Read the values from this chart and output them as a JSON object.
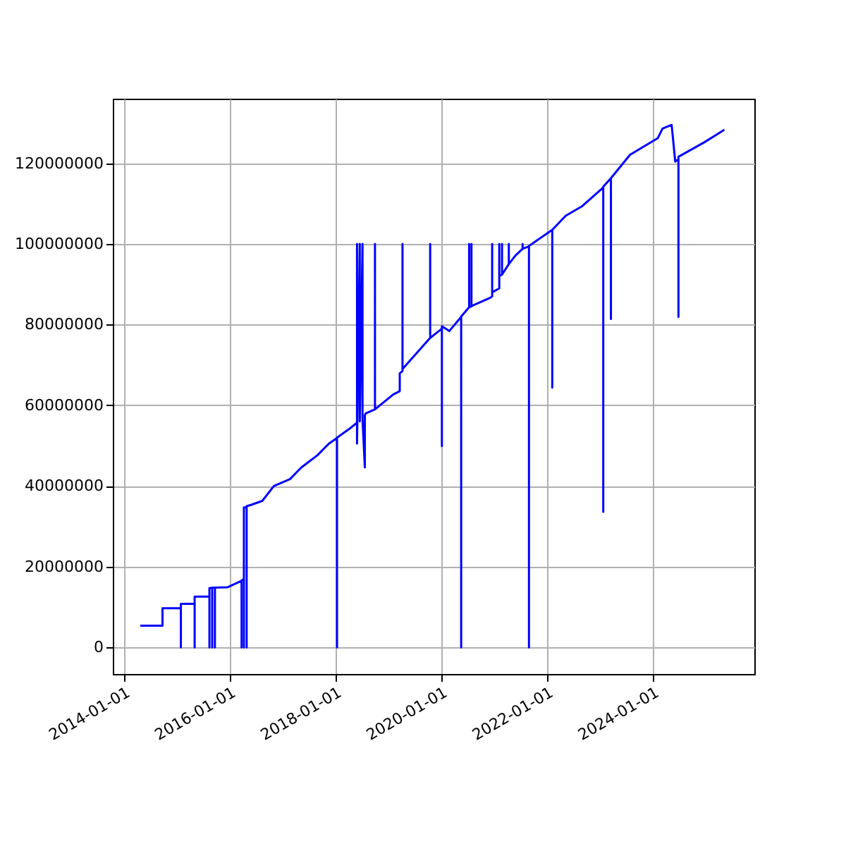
{
  "chart_data": {
    "type": "line",
    "grid": true,
    "xlim": [
      "2013-10-16",
      "2025-12-01"
    ],
    "xticks": [
      "2014-01-01",
      "2016-01-01",
      "2018-01-01",
      "2020-01-01",
      "2022-01-01",
      "2024-01-01"
    ],
    "ylim": [
      -6600000,
      136000000
    ],
    "yticks": [
      0,
      20000000,
      40000000,
      60000000,
      80000000,
      100000000,
      120000000
    ],
    "x": [
      "2014-04-24",
      "2014-09-24",
      "2014-09-24",
      "2015-01-29",
      "2015-01-29",
      "2015-01-29",
      "2015-05-04",
      "2015-05-04",
      "2015-05-04",
      "2015-08-14",
      "2015-08-14",
      "2015-08-14",
      "2015-09-02",
      "2015-09-02",
      "2015-09-02",
      "2015-09-21",
      "2015-09-21",
      "2015-09-21",
      "2015-12-18",
      "2016-03-23",
      "2016-03-23",
      "2016-03-23",
      "2016-04-08",
      "2016-04-08",
      "2016-04-08",
      "2016-04-08",
      "2016-04-08",
      "2016-04-27",
      "2016-04-27",
      "2016-04-27",
      "2016-05-26",
      "2016-08-13",
      "2016-11-01",
      "2017-02-20",
      "2017-05-10",
      "2017-08-28",
      "2017-11-16",
      "2018-01-11",
      "2018-01-11",
      "2018-01-11",
      "2018-04-08",
      "2018-05-29",
      "2018-05-29",
      "2018-05-29",
      "2018-06-17",
      "2018-06-17",
      "2018-07-06",
      "2018-07-06",
      "2018-07-22",
      "2018-07-22",
      "2018-07-28",
      "2018-09-30",
      "2018-09-30",
      "2018-09-30",
      "2019-02-04",
      "2019-03-20",
      "2019-03-20",
      "2019-04-08",
      "2019-04-08",
      "2019-04-08",
      "2019-10-16",
      "2019-10-16",
      "2019-10-16",
      "2020-01-05",
      "2020-01-05",
      "2020-01-05",
      "2020-02-25",
      "2020-05-17",
      "2020-05-17",
      "2020-05-17",
      "2020-07-11",
      "2020-07-11",
      "2020-07-11",
      "2020-07-27",
      "2020-07-27",
      "2020-07-27",
      "2020-12-01",
      "2020-12-17",
      "2020-12-17",
      "2020-12-17",
      "2021-02-04",
      "2021-02-04",
      "2021-02-04",
      "2021-02-23",
      "2021-02-23",
      "2021-02-23",
      "2021-04-11",
      "2021-04-11",
      "2021-04-11",
      "2021-05-26",
      "2021-07-15",
      "2021-07-15",
      "2021-07-15",
      "2021-08-28",
      "2021-08-28",
      "2021-08-28",
      "2022-02-05",
      "2022-02-05",
      "2022-02-05",
      "2022-05-09",
      "2022-08-28",
      "2023-01-23",
      "2023-01-23",
      "2023-01-23",
      "2023-03-17",
      "2023-03-17",
      "2023-03-17",
      "2023-07-27",
      "2024-02-03",
      "2024-03-07",
      "2024-05-09",
      "2024-06-03",
      "2024-06-25",
      "2024-06-25",
      "2024-06-25",
      "2024-12-16",
      "2025-05-08"
    ],
    "series": [
      {
        "color": "#0000ff",
        "values": [
          5350000,
          5350000,
          9700000,
          9700000,
          0,
          10800000,
          10800000,
          0,
          12600000,
          12600000,
          0,
          14700000,
          14700000,
          0,
          14800000,
          14800000,
          0,
          14800000,
          14900000,
          16500000,
          0,
          16600000,
          16900000,
          0,
          34700000,
          0,
          34700000,
          34700000,
          0,
          35000000,
          35300000,
          36300000,
          40000000,
          41700000,
          44600000,
          47600000,
          50500000,
          51900000,
          0,
          52000000,
          54200000,
          55700000,
          100000000,
          50500000,
          100000000,
          56000000,
          100000000,
          56500000,
          44600000,
          57500000,
          58000000,
          59000000,
          100000000,
          59000000,
          62700000,
          63500000,
          67900000,
          68500000,
          100000000,
          69000000,
          76700000,
          100000000,
          76700000,
          79000000,
          49900000,
          79600000,
          78400000,
          81900000,
          0,
          82000000,
          84300000,
          100000000,
          84300000,
          84500000,
          100000000,
          84600000,
          86600000,
          87000000,
          100000000,
          88000000,
          89000000,
          100000000,
          92000000,
          92400000,
          100000000,
          92400000,
          95000000,
          100000000,
          95000000,
          97100000,
          98800000,
          100000000,
          98800000,
          99400000,
          0,
          99500000,
          103500000,
          64400000,
          103500000,
          107000000,
          109300000,
          114000000,
          33600000,
          114200000,
          116300000,
          81400000,
          116300000,
          122100000,
          126200000,
          128600000,
          129500000,
          120400000,
          121000000,
          81900000,
          121600000,
          125100000,
          128300000
        ]
      }
    ]
  }
}
